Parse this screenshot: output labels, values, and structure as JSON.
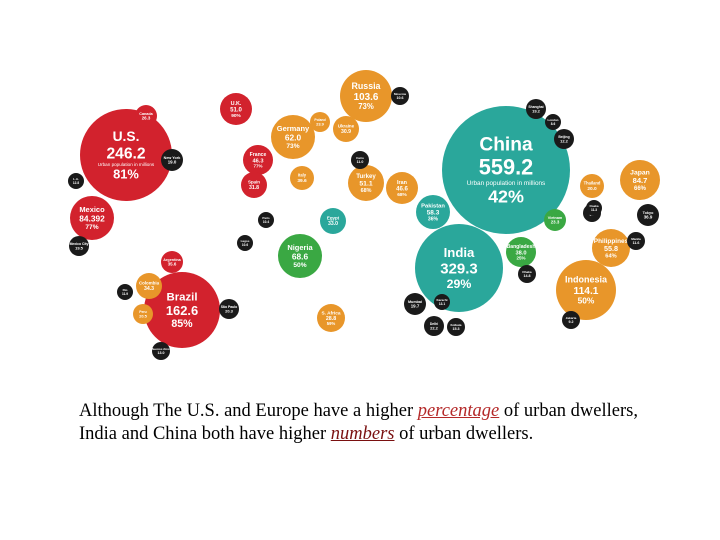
{
  "colors": {
    "americas": "#d2222d",
    "europe": "#e8962a",
    "africa": "#3aa843",
    "asia_highlight": "#2aa79b",
    "small_city": "#1a1a1a",
    "label_light": "#ffffff",
    "label_dark": "#1a1a1a"
  },
  "caption": {
    "part1": "Although  The U.S. and Europe have a higher ",
    "emph1": "percentage",
    "part2": " of  urban dwellers, India and China both have higher ",
    "emph2": "numbers",
    "part3": " of urban dwellers.",
    "emph1_color": "#b42828",
    "emph2_color": "#7a1010"
  },
  "bubbles": [
    {
      "name": "U.S.",
      "value": "246.2",
      "pct": "81%",
      "sub": "Urban population in millions",
      "color": "americas"
    },
    {
      "name": "China",
      "value": "559.2",
      "pct": "42%",
      "sub": "Urban population in millions",
      "color": "asia_highlight"
    },
    {
      "name": "India",
      "value": "329.3",
      "pct": "29%",
      "color": "asia_highlight"
    },
    {
      "name": "Brazil",
      "value": "162.6",
      "pct": "85%",
      "color": "americas"
    },
    {
      "name": "Mexico",
      "value": "84.392",
      "pct": "77%",
      "color": "americas"
    },
    {
      "name": "Russia",
      "value": "103.6",
      "pct": "73%",
      "color": "europe"
    },
    {
      "name": "Germany",
      "value": "62.0",
      "pct": "73%",
      "color": "europe"
    },
    {
      "name": "Nigeria",
      "value": "68.6",
      "pct": "50%",
      "color": "africa"
    },
    {
      "name": "Indonesia",
      "value": "114.1",
      "pct": "50%",
      "color": "europe"
    },
    {
      "name": "Japan",
      "value": "84.7",
      "pct": "66%",
      "color": "europe"
    },
    {
      "name": "Philippines",
      "value": "55.8",
      "pct": "64%",
      "color": "europe"
    },
    {
      "name": "Turkey",
      "value": "51.1",
      "pct": "68%",
      "color": "europe"
    },
    {
      "name": "Iran",
      "value": "46.6",
      "pct": "68%",
      "color": "europe"
    },
    {
      "name": "Pakistan",
      "value": "58.3",
      "pct": "36%",
      "color": "asia_highlight"
    },
    {
      "name": "Bangladesh",
      "value": "38.0",
      "pct": "25%",
      "color": "africa"
    },
    {
      "name": "France",
      "value": "46.3",
      "pct": "77%",
      "color": "americas"
    },
    {
      "name": "U.K.",
      "value": "51.0",
      "pct": "90%",
      "color": "americas"
    },
    {
      "name": "Italy",
      "value": "39.6",
      "pct": "68%",
      "color": "europe"
    },
    {
      "name": "Ukraine",
      "value": "30.9",
      "pct": "68%",
      "color": "europe"
    },
    {
      "name": "Poland",
      "value": "23.9",
      "pct": "62%",
      "color": "europe"
    },
    {
      "name": "Spain",
      "value": "31.8",
      "pct": "77%",
      "color": "americas"
    },
    {
      "name": "Colombia",
      "value": "34.3",
      "pct": "73%",
      "color": "europe"
    },
    {
      "name": "Argentina",
      "value": "35.6",
      "pct": "91%",
      "color": "americas"
    },
    {
      "name": "Peru",
      "value": "20.5",
      "pct": "73%",
      "color": "europe"
    },
    {
      "name": "Egypt",
      "value": "33.0",
      "pct": "43%",
      "color": "asia_highlight"
    },
    {
      "name": "S. Africa",
      "value": "28.8",
      "pct": "59%",
      "color": "europe"
    },
    {
      "name": "Thailand",
      "value": "20.0",
      "pct": "33%",
      "color": "europe"
    },
    {
      "name": "Vietnam",
      "value": "23.3",
      "pct": "27%",
      "color": "africa"
    },
    {
      "name": "Canada",
      "value": "26.3",
      "pct": "80%",
      "color": "americas"
    },
    {
      "name": "New York",
      "value": "19.0",
      "color": "small_city"
    },
    {
      "name": "Shanghai",
      "value": "19.2",
      "color": "small_city"
    },
    {
      "name": "Tokyo",
      "value": "36.9",
      "color": "small_city"
    },
    {
      "name": "Mumbai",
      "value": "19.7",
      "color": "small_city"
    },
    {
      "name": "Delhi",
      "value": "22.2",
      "color": "small_city"
    },
    {
      "name": "São Paulo",
      "value": "20.3",
      "color": "small_city"
    },
    {
      "name": "Mexico City",
      "value": "19.5",
      "color": "small_city"
    },
    {
      "name": "Moscow",
      "value": "10.6",
      "color": "small_city"
    },
    {
      "name": "Beijing",
      "value": "12.2",
      "color": "small_city"
    },
    {
      "name": "Dhaka",
      "value": "14.8",
      "color": "small_city"
    },
    {
      "name": "Kolkata",
      "value": "15.3",
      "color": "small_city"
    },
    {
      "name": "Karachi",
      "value": "13.1",
      "color": "small_city"
    },
    {
      "name": "Cairo",
      "value": "11.0",
      "color": "small_city"
    },
    {
      "name": "Manila",
      "value": "11.6",
      "color": "small_city"
    },
    {
      "name": "Seoul",
      "value": "9.8",
      "color": "small_city"
    },
    {
      "name": "Jakarta",
      "value": "9.2",
      "color": "small_city"
    },
    {
      "name": "Buenos Aires",
      "value": "13.0",
      "color": "small_city"
    },
    {
      "name": "Rio",
      "value": "11.9",
      "color": "small_city"
    },
    {
      "name": "Lagos",
      "value": "10.6",
      "color": "small_city"
    },
    {
      "name": "Paris",
      "value": "10.4",
      "color": "small_city"
    },
    {
      "name": "London",
      "value": "8.6",
      "color": "small_city"
    },
    {
      "name": "L.A.",
      "value": "12.8",
      "color": "small_city"
    },
    {
      "name": "Osaka",
      "value": "11.3",
      "color": "small_city"
    }
  ]
}
